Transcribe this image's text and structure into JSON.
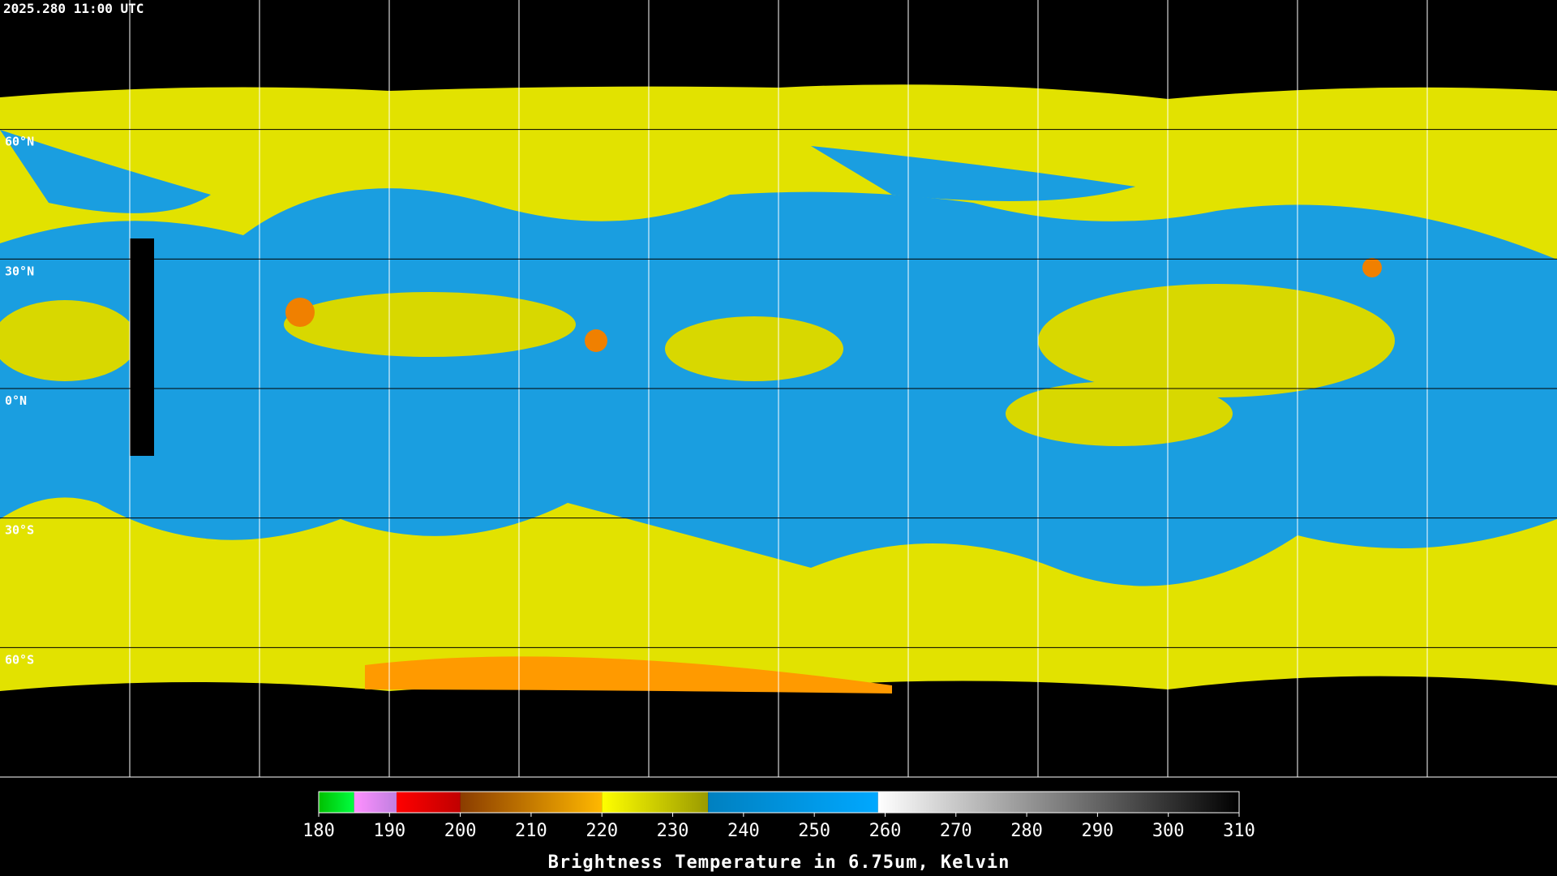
{
  "timestamp": "2025.280 11:00 UTC",
  "latitude_labels": [
    "60°N",
    "30°N",
    "0°N",
    "30°S",
    "60°S"
  ],
  "colorbar": {
    "range": [
      180,
      310
    ],
    "ticks": [
      180,
      190,
      200,
      210,
      220,
      230,
      240,
      250,
      260,
      270,
      280,
      290,
      300,
      310
    ],
    "segments": [
      {
        "from": 180,
        "to": 185,
        "colors": [
          "#00c000",
          "#00ff40"
        ]
      },
      {
        "from": 185,
        "to": 191,
        "colors": [
          "#ff90ff",
          "#c080e0"
        ]
      },
      {
        "from": 191,
        "to": 200,
        "colors": [
          "#ff0000",
          "#c00000"
        ]
      },
      {
        "from": 200,
        "to": 220,
        "colors": [
          "#8a3c00",
          "#ffb800"
        ]
      },
      {
        "from": 220,
        "to": 235,
        "colors": [
          "#ffff00",
          "#9a9a00"
        ]
      },
      {
        "from": 235,
        "to": 259,
        "colors": [
          "#0080c0",
          "#00a8ff"
        ]
      },
      {
        "from": 259,
        "to": 310,
        "colors": [
          "#ffffff",
          "#000000"
        ]
      }
    ],
    "caption": "Brightness Temperature in 6.75um, Kelvin"
  }
}
